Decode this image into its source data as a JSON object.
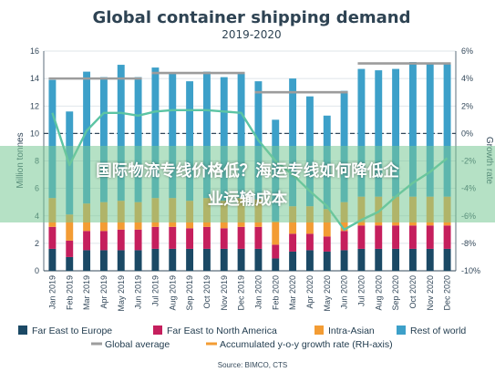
{
  "overlay": {
    "line1": "国际物流专线价格低？海运专线如何降低企",
    "line2": "业运输成本"
  },
  "chart_data": {
    "type": "bar",
    "title": "Global container shipping demand",
    "subtitle": "2019-2020",
    "ylabel_left": "Million tonnes",
    "ylabel_right": "Growth rate",
    "ylim_left": [
      0,
      16
    ],
    "yticks_left": [
      "0",
      "2",
      "4",
      "6",
      "8",
      "10",
      "12",
      "14",
      "16"
    ],
    "ylim_right": [
      -10,
      6
    ],
    "yticks_right": [
      "-10%",
      "-8%",
      "-6%",
      "-4%",
      "-2%",
      "0%",
      "2%",
      "4%",
      "6%"
    ],
    "categories": [
      "Jan 2019",
      "Feb 2019",
      "Mar 2019",
      "Apr 2019",
      "May 2019",
      "Jun 2019",
      "Jul 2019",
      "Aug 2019",
      "Sep 2019",
      "Oct 2019",
      "Nov 2019",
      "Dec 2019",
      "Jan 2020",
      "Feb 2020",
      "Mar 2020",
      "Apr 2020",
      "May 2020",
      "Jun 2020",
      "Jul 2020",
      "Aug 2020",
      "Sep 2020",
      "Oct 2020",
      "Nov 2020",
      "Dec 2020"
    ],
    "series": [
      {
        "name": "Far East to Europe",
        "color": "#1b4965",
        "values": [
          1.6,
          1.0,
          1.5,
          1.5,
          1.5,
          1.5,
          1.6,
          1.6,
          1.6,
          1.6,
          1.6,
          1.6,
          1.6,
          0.9,
          1.4,
          1.5,
          1.4,
          1.5,
          1.6,
          1.6,
          1.6,
          1.6,
          1.6,
          1.6
        ]
      },
      {
        "name": "Far East to North America",
        "color": "#c51f5d",
        "values": [
          1.6,
          1.2,
          1.4,
          1.4,
          1.5,
          1.5,
          1.6,
          1.6,
          1.5,
          1.6,
          1.5,
          1.6,
          1.6,
          1.0,
          1.3,
          1.2,
          1.1,
          1.4,
          1.7,
          1.7,
          1.7,
          1.7,
          1.7,
          1.7
        ]
      },
      {
        "name": "Intra-Asian",
        "color": "#f39c34",
        "values": [
          2.1,
          1.9,
          2.0,
          2.1,
          2.1,
          2.0,
          2.1,
          2.1,
          2.0,
          2.1,
          2.0,
          2.1,
          2.0,
          1.7,
          2.0,
          2.0,
          2.0,
          2.1,
          2.1,
          2.1,
          2.1,
          2.1,
          2.1,
          2.1
        ]
      },
      {
        "name": "Rest of world",
        "color": "#3da0c9",
        "values": [
          8.6,
          7.5,
          9.6,
          9.1,
          9.9,
          9.1,
          9.5,
          9.1,
          8.7,
          9.2,
          9.0,
          9.1,
          8.6,
          7.4,
          9.3,
          8.0,
          6.8,
          8.1,
          9.3,
          9.2,
          9.3,
          9.8,
          9.7,
          9.7
        ]
      }
    ],
    "global_average": {
      "name": "Global average",
      "color": "#9c9c9c",
      "segments": [
        {
          "start": "Jan 2019",
          "end": "Jun 2019",
          "value": 14.0
        },
        {
          "start": "Jul 2019",
          "end": "Dec 2019",
          "value": 14.4
        },
        {
          "start": "Jan 2020",
          "end": "Jun 2020",
          "value": 13.0
        },
        {
          "start": "Jul 2020",
          "end": "Dec 2020",
          "value": 15.1
        }
      ]
    },
    "growth_line": {
      "name": "Accumulated y-o-y growth rate (RH-axis)",
      "color": "#5cc4a4",
      "values": [
        1.5,
        -2.3,
        0.2,
        1.5,
        1.5,
        1.3,
        1.6,
        1.7,
        1.7,
        1.7,
        1.6,
        1.5,
        -0.5,
        -2.0,
        -3.0,
        -4.2,
        -5.3,
        -7.0,
        -6.3,
        -5.7,
        -4.6,
        -3.6,
        -2.8,
        -1.8
      ]
    },
    "legend": [
      "Far East to Europe",
      "Far East to North America",
      "Intra-Asian",
      "Rest of world",
      "Global average",
      "Accumulated y-o-y growth rate (RH-axis)"
    ],
    "source": "Source: BIMCO, CTS",
    "grid": true
  }
}
